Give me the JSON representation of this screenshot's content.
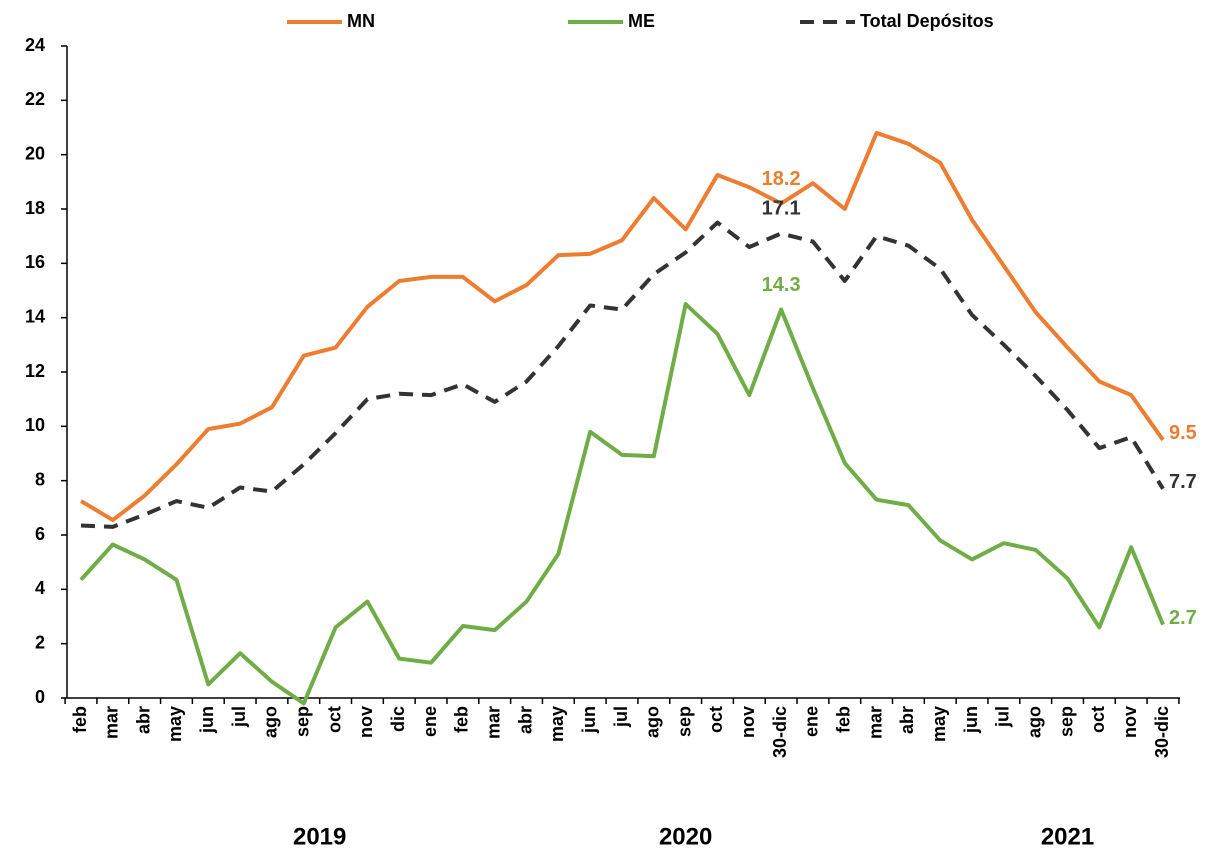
{
  "chart_data": {
    "type": "line",
    "categories": [
      "feb",
      "mar",
      "abr",
      "may",
      "jun",
      "jul",
      "ago",
      "sep",
      "oct",
      "nov",
      "dic",
      "ene",
      "feb",
      "mar",
      "abr",
      "may",
      "jun",
      "jul",
      "ago",
      "sep",
      "oct",
      "nov",
      "30-dic",
      "ene",
      "feb",
      "mar",
      "abr",
      "may",
      "jun",
      "jul",
      "ago",
      "sep",
      "oct",
      "nov",
      "30-dic"
    ],
    "year_groups": [
      {
        "label": "2019",
        "count": 11
      },
      {
        "label": "2020",
        "count": 12
      },
      {
        "label": "2021",
        "count": 12
      }
    ],
    "series": [
      {
        "name": "MN",
        "color": "#ED7D31",
        "dash": false,
        "values": [
          7.25,
          6.55,
          7.45,
          8.6,
          9.9,
          10.1,
          10.7,
          12.6,
          12.9,
          14.4,
          15.35,
          15.5,
          15.5,
          14.6,
          15.2,
          16.3,
          16.35,
          16.85,
          18.4,
          17.25,
          19.25,
          18.8,
          18.2,
          18.95,
          18.0,
          20.8,
          20.4,
          19.7,
          17.6,
          15.9,
          14.2,
          12.9,
          11.65,
          11.15,
          9.5
        ],
        "value_labels": [
          null,
          null,
          null,
          null,
          null,
          null,
          null,
          null,
          null,
          null,
          null,
          null,
          null,
          null,
          null,
          null,
          null,
          null,
          null,
          null,
          null,
          null,
          "18.2",
          null,
          null,
          null,
          null,
          null,
          null,
          null,
          null,
          null,
          null,
          null,
          "9.5"
        ]
      },
      {
        "name": "ME",
        "color": "#70AD47",
        "dash": false,
        "values": [
          4.35,
          5.65,
          5.1,
          4.35,
          0.5,
          1.65,
          0.6,
          -0.2,
          2.6,
          3.55,
          1.45,
          1.3,
          2.65,
          2.5,
          3.55,
          5.3,
          9.8,
          8.95,
          8.9,
          14.5,
          13.4,
          11.15,
          14.3,
          11.4,
          8.65,
          7.3,
          7.1,
          5.8,
          5.1,
          5.7,
          5.45,
          4.4,
          2.6,
          5.55,
          2.7
        ],
        "value_labels": [
          null,
          null,
          null,
          null,
          null,
          null,
          null,
          null,
          null,
          null,
          null,
          null,
          null,
          null,
          null,
          null,
          null,
          null,
          null,
          null,
          null,
          null,
          "14.3",
          null,
          null,
          null,
          null,
          null,
          null,
          null,
          null,
          null,
          null,
          null,
          "2.7"
        ]
      },
      {
        "name": "Total Depósitos",
        "color": "#333333",
        "dash": true,
        "values": [
          6.35,
          6.3,
          6.75,
          7.25,
          7.0,
          7.75,
          7.6,
          8.6,
          9.75,
          11.0,
          11.2,
          11.15,
          11.55,
          10.9,
          11.65,
          12.95,
          14.45,
          14.3,
          15.6,
          16.4,
          17.5,
          16.6,
          17.1,
          16.8,
          15.35,
          17.0,
          16.65,
          15.8,
          14.1,
          13.0,
          11.85,
          10.6,
          9.2,
          9.6,
          7.7
        ],
        "value_labels": [
          null,
          null,
          null,
          null,
          null,
          null,
          null,
          null,
          null,
          null,
          null,
          null,
          null,
          null,
          null,
          null,
          null,
          null,
          null,
          null,
          null,
          null,
          "17.1",
          null,
          null,
          null,
          null,
          null,
          null,
          null,
          null,
          null,
          null,
          null,
          "7.7"
        ]
      }
    ],
    "ylim": [
      0,
      24
    ],
    "yticks": [
      0,
      2,
      4,
      6,
      8,
      10,
      12,
      14,
      16,
      18,
      20,
      22,
      24
    ],
    "grid": false,
    "legend": "top"
  }
}
